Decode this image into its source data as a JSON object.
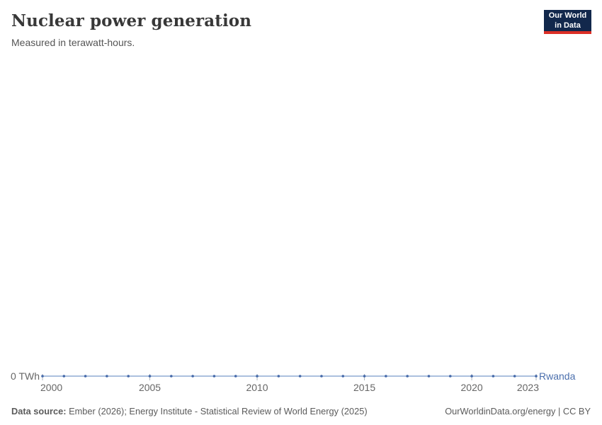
{
  "header": {
    "title": "Nuclear power generation",
    "subtitle": "Measured in terawatt-hours.",
    "logo": {
      "line1": "Our World",
      "line2": "in Data",
      "bg_color": "#12284C",
      "bar_color": "#DC2F26"
    }
  },
  "chart_data": {
    "type": "line",
    "title": "Nuclear power generation",
    "subtitle": "Measured in terawatt-hours.",
    "x": [
      2000,
      2001,
      2002,
      2003,
      2004,
      2005,
      2006,
      2007,
      2008,
      2009,
      2010,
      2011,
      2012,
      2013,
      2014,
      2015,
      2016,
      2017,
      2018,
      2019,
      2020,
      2021,
      2022,
      2023
    ],
    "series": [
      {
        "name": "Rwanda",
        "values": [
          0,
          0,
          0,
          0,
          0,
          0,
          0,
          0,
          0,
          0,
          0,
          0,
          0,
          0,
          0,
          0,
          0,
          0,
          0,
          0,
          0,
          0,
          0,
          0
        ],
        "dot_color": "#4468A8",
        "line_color": "#8FABD4",
        "label_color": "#4B6FAD"
      }
    ],
    "x_ticks": [
      2000,
      2005,
      2010,
      2015,
      2020,
      2023
    ],
    "xlim": [
      2000,
      2023
    ],
    "y_axis_label": "0 TWh",
    "y_axis_value": 0,
    "grid": false,
    "legend_position": "end-of-line",
    "axis_text_color": "#666666",
    "tick_mark_color": "#A9B3BD"
  },
  "footer": {
    "source_label": "Data source:",
    "source_text": " Ember (2026); Energy Institute - Statistical Review of World Energy (2025)",
    "rights": "OurWorldinData.org/energy | CC BY"
  }
}
